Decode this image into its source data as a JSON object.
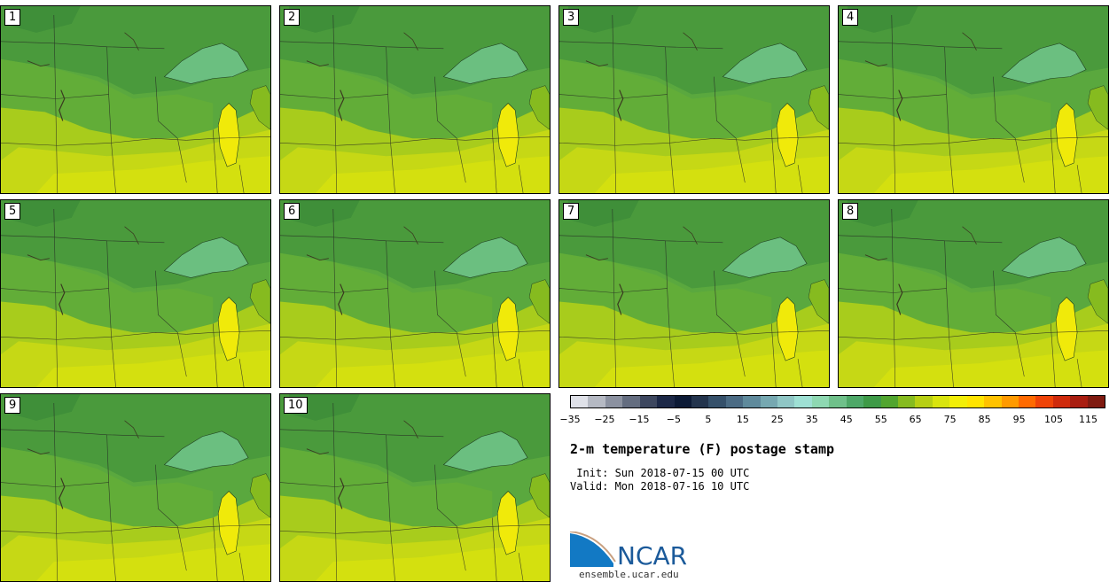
{
  "panels": [
    {
      "label": "1"
    },
    {
      "label": "2"
    },
    {
      "label": "3"
    },
    {
      "label": "4"
    },
    {
      "label": "5"
    },
    {
      "label": "6"
    },
    {
      "label": "7"
    },
    {
      "label": "8"
    },
    {
      "label": "9"
    },
    {
      "label": "10"
    }
  ],
  "colorbar": {
    "colors": [
      "#dfe1e8",
      "#b5b9c3",
      "#8b91a0",
      "#646d80",
      "#3d475f",
      "#1c2847",
      "#0c1a36",
      "#23344d",
      "#35506a",
      "#4b6b84",
      "#5f8a9c",
      "#76a8b1",
      "#8fc6c5",
      "#9ee0d4",
      "#8ed8b2",
      "#6fc08a",
      "#4ea868",
      "#3e9a47",
      "#51a52f",
      "#86bb1f",
      "#b7cf13",
      "#d9e40e",
      "#f2ee08",
      "#ffe400",
      "#ffc200",
      "#ff9a00",
      "#ff6a00",
      "#ef4308",
      "#cf2a0c",
      "#a91d10",
      "#7f1a10"
    ],
    "ticks": [
      "−35",
      "−25",
      "−15",
      "−5",
      "5",
      "15",
      "25",
      "35",
      "45",
      "55",
      "65",
      "75",
      "85",
      "95",
      "105",
      "115"
    ]
  },
  "title": "2-m temperature (F) postage stamp",
  "init": " Init: Sun 2018-07-15 00 UTC",
  "valid": "Valid: Mon 2018-07-16 10 UTC",
  "logo": {
    "text": "NCAR",
    "url": "ensemble.ucar.edu"
  }
}
